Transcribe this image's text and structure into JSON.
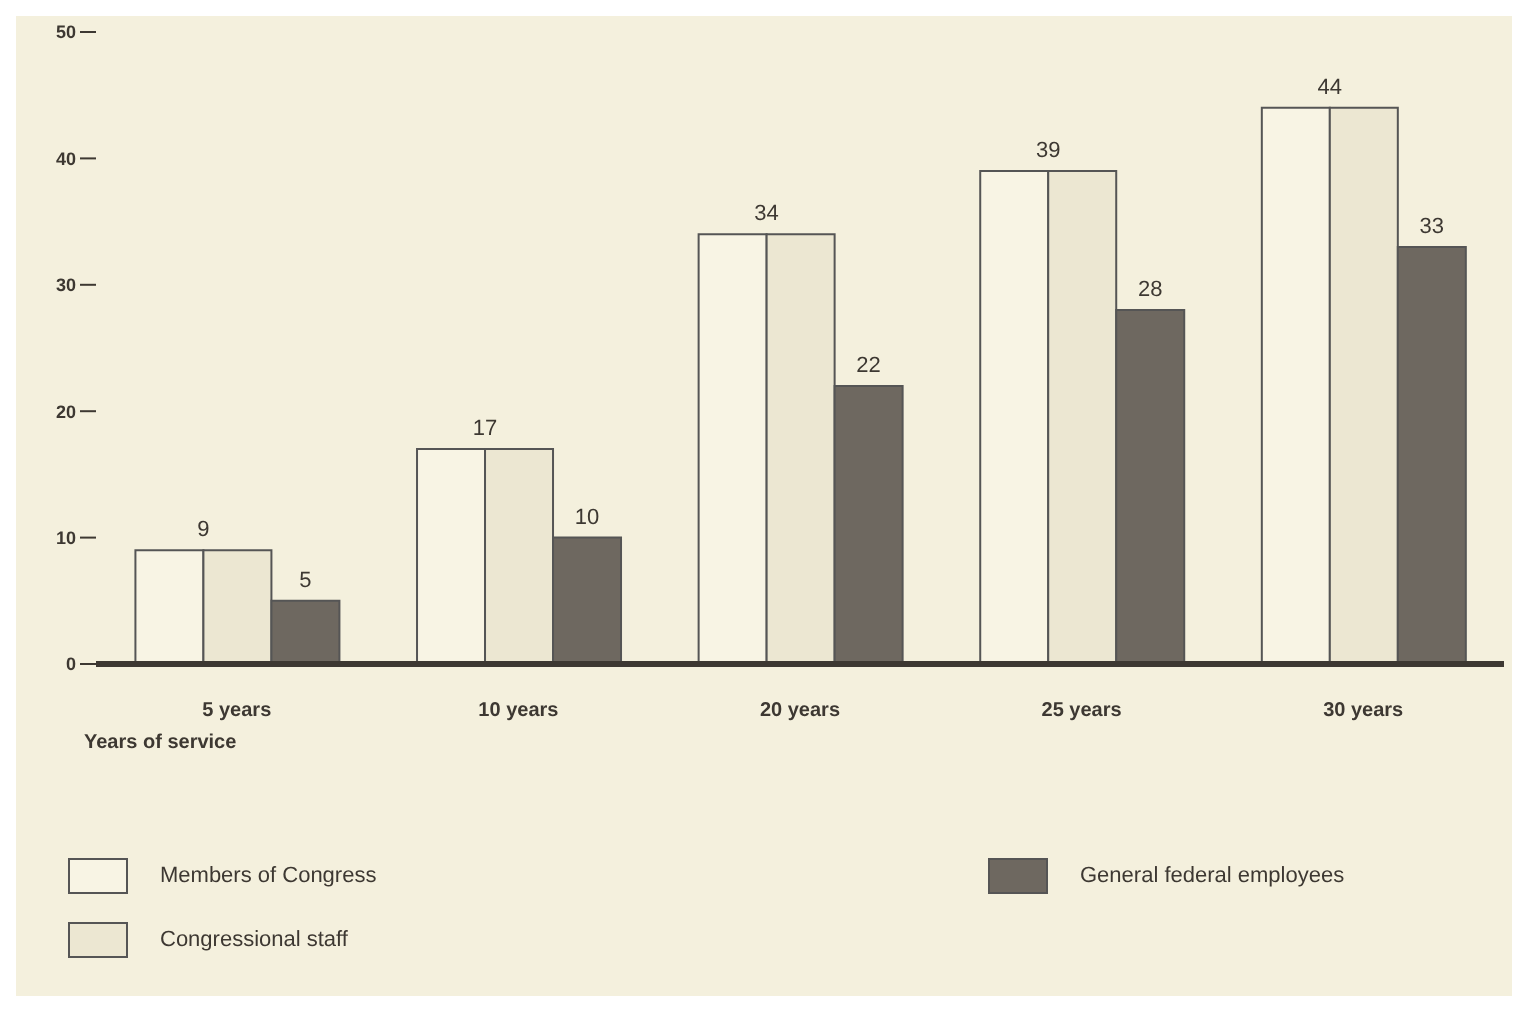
{
  "chart_data": {
    "type": "bar",
    "xlabel": "Years of service",
    "categories": [
      "5 years",
      "10 years",
      "20 years",
      "25 years",
      "30 years"
    ],
    "series": [
      {
        "name": "Members of Congress",
        "color": "#f8f4e4",
        "values": [
          9,
          17,
          34,
          39,
          44
        ],
        "value_labels": [
          "9",
          "17",
          "34",
          "39",
          "44"
        ]
      },
      {
        "name": "Congressional staff",
        "color": "#ece7d2",
        "values": [
          9,
          17,
          34,
          39,
          44
        ],
        "value_labels": [
          null,
          null,
          null,
          null,
          null
        ]
      },
      {
        "name": "General federal employees",
        "color": "#6e6860",
        "values": [
          5,
          10,
          22,
          28,
          33
        ],
        "value_labels": [
          "5",
          "10",
          "22",
          "28",
          "33"
        ]
      }
    ],
    "ylim": [
      0,
      50
    ],
    "yticks": [
      0,
      10,
      20,
      30,
      40,
      50
    ],
    "legend": "bottom"
  }
}
